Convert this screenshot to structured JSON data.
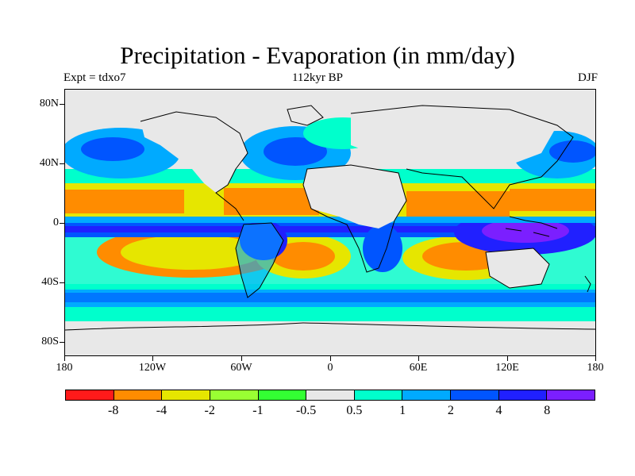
{
  "title": "Precipitation - Evaporation (in mm/day)",
  "experiment_label": "Expt = tdxo7",
  "period_label": "112kyr BP",
  "season_label": "DJF",
  "map": {
    "projection": "cylindrical equidistant",
    "lon_range": [
      -180,
      180
    ],
    "lat_range": [
      -90,
      90
    ],
    "lat_tick_labels": [
      "80N",
      "40N",
      "0",
      "40S",
      "80S"
    ],
    "lon_tick_labels": [
      "180",
      "120W",
      "60W",
      "0",
      "60E",
      "120E",
      "180"
    ]
  },
  "colorbar": {
    "colors": [
      "#ff1a1a",
      "#ff8c00",
      "#e6e600",
      "#99ff33",
      "#33ff33",
      "#e8e8e8",
      "#00ffcc",
      "#00aaff",
      "#0055ff",
      "#2020ff",
      "#7b1fff"
    ],
    "labels": [
      "-8",
      "-4",
      "-2",
      "-1",
      "-0.5",
      "0.5",
      "1",
      "2",
      "4",
      "8"
    ]
  }
}
